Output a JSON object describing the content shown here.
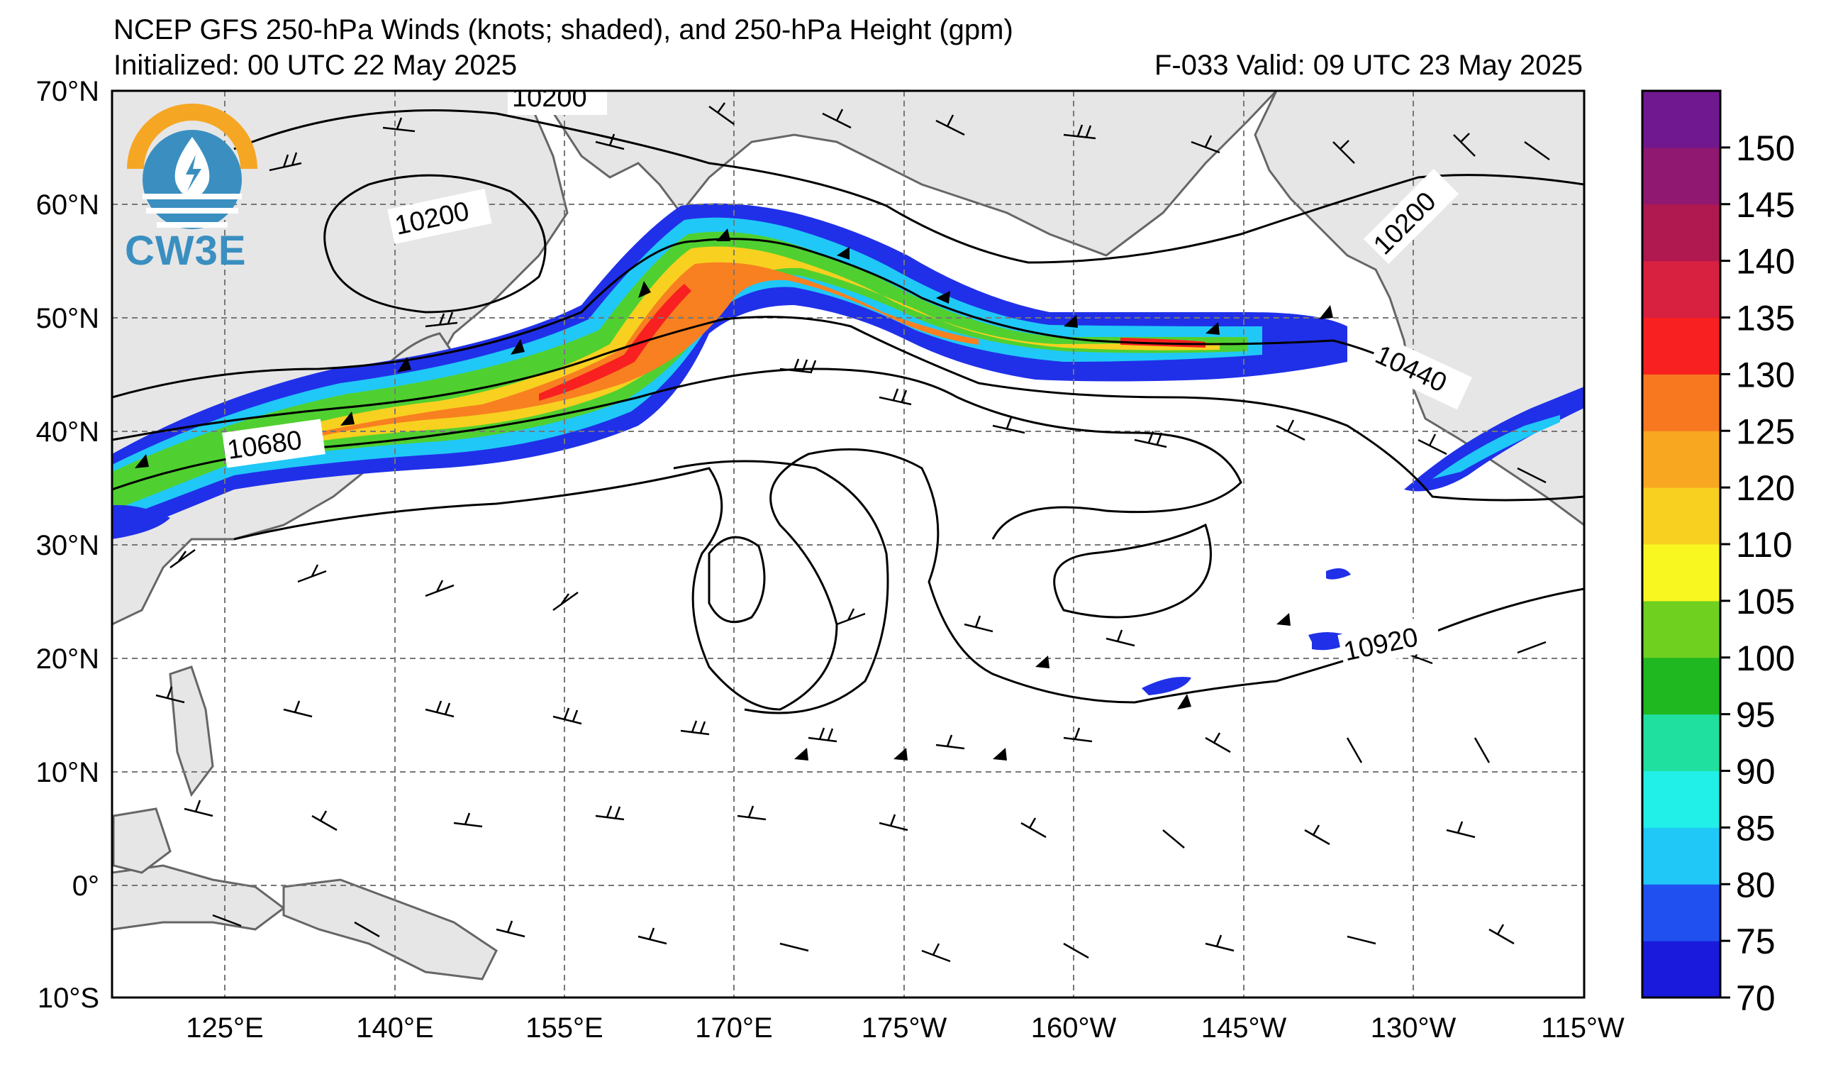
{
  "header": {
    "title": "NCEP GFS 250-hPa Winds (knots; shaded), and 250-hPa Height (gpm)",
    "initialized": "Initialized: 00 UTC 22 May 2025",
    "valid": "F-033  Valid: 09 UTC 23 May 2025"
  },
  "logo": {
    "text": "CW3E",
    "icon": "cw3e-logo-icon"
  },
  "axes": {
    "lat_ticks": [
      "70°N",
      "60°N",
      "50°N",
      "40°N",
      "30°N",
      "20°N",
      "10°N",
      "0°",
      "10°S"
    ],
    "lon_ticks": [
      "125°E",
      "140°E",
      "155°E",
      "170°E",
      "175°W",
      "160°W",
      "145°W",
      "130°W",
      "115°W"
    ]
  },
  "contour_labels": [
    "10200",
    "10200",
    "10200",
    "10440",
    "10680",
    "10920"
  ],
  "colorbar": {
    "ticks": [
      "70",
      "75",
      "80",
      "85",
      "90",
      "95",
      "100",
      "105",
      "110",
      "120",
      "125",
      "130",
      "135",
      "140",
      "145",
      "150"
    ],
    "colors": [
      "#1a1adc",
      "#2050f0",
      "#20c8f8",
      "#20f0e8",
      "#20e0a0",
      "#20b820",
      "#70d020",
      "#f8f820",
      "#f8d020",
      "#f8a820",
      "#f87820",
      "#f82020",
      "#d82040",
      "#b01850",
      "#901870",
      "#701890"
    ]
  }
}
